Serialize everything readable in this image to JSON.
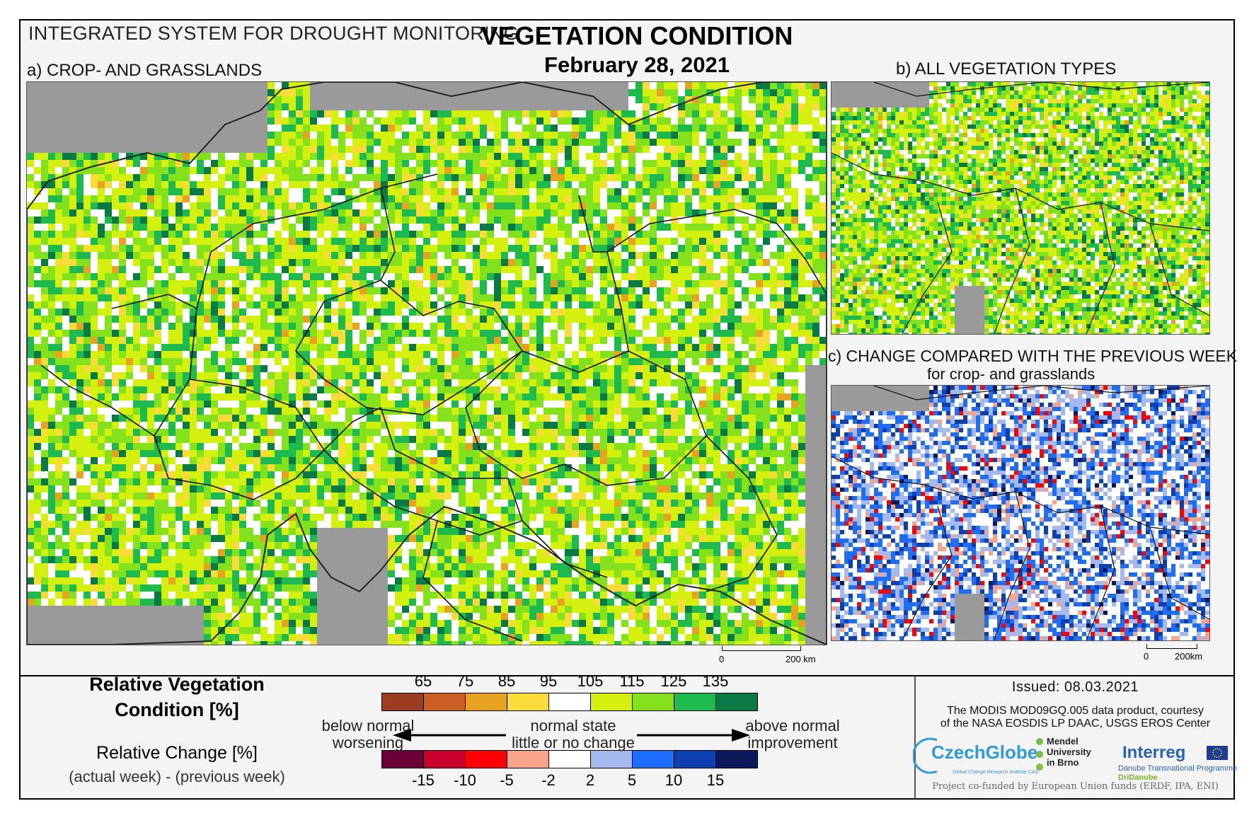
{
  "header": {
    "system_title": "INTEGRATED SYSTEM FOR DROUGHT MONITORING",
    "title": "VEGETATION CONDITION",
    "date": "February 28, 2021"
  },
  "panels": {
    "a": {
      "label": "a) CROP- AND GRASSLANDS"
    },
    "b": {
      "label": "b) ALL VEGETATION TYPES"
    },
    "c": {
      "label": "c) CHANGE COMPARED WITH THE PREVIOUS WEEK",
      "sublabel": "for crop- and grasslands"
    }
  },
  "scalebars": {
    "a": {
      "start": "0",
      "end": "200 km"
    },
    "c": {
      "start": "0",
      "end": "200km"
    }
  },
  "legend": {
    "rvc_title_line1": "Relative Vegetation",
    "rvc_title_line2": "Condition [%]",
    "change_title": "Relative Change [%]",
    "change_formula": "(actual week) - (previous week)",
    "rvc_ticks": [
      "65",
      "75",
      "85",
      "95",
      "105",
      "115",
      "125",
      "135"
    ],
    "rvc_colors": [
      "#9a3d22",
      "#c95f24",
      "#e6a321",
      "#f9dc3a",
      "#ffffff",
      "#d4f00e",
      "#83e21b",
      "#1fba4e",
      "#0a7a44"
    ],
    "change_ticks": [
      "-15",
      "-10",
      "-5",
      "-2",
      "2",
      "5",
      "10",
      "15"
    ],
    "change_colors": [
      "#6a0036",
      "#c8002a",
      "#ff0000",
      "#f8a38a",
      "#ffffff",
      "#a6b9ee",
      "#1f6dff",
      "#0e3fb0",
      "#0a1a5a"
    ],
    "left_desc_line1": "below normal",
    "left_desc_line2": "worsening",
    "center_desc_line1": "normal state",
    "center_desc_line2": "little or no change",
    "right_desc_line1": "above normal",
    "right_desc_line2": "improvement"
  },
  "footer": {
    "issued": "Issued: 08.03.2021",
    "courtesy_line1": "The MODIS MOD09GQ.005 data product, courtesy",
    "courtesy_line2": "of the NASA EOSDIS LP DAAC, USGS EROS Center",
    "logo_czechglobe": "CzechGlobe",
    "logo_czechglobe_sub": "Global Change Research Institute CAS",
    "logo_mendel_line1": "Mendel",
    "logo_mendel_line2": "University",
    "logo_mendel_line3": "in Brno",
    "logo_interreg": "Interreg",
    "logo_interreg_sub": "Danube Transnational Programme",
    "logo_dri": "DriDanube",
    "funded": "Project co-funded by European Union funds (ERDF, IPA, ENI)"
  }
}
